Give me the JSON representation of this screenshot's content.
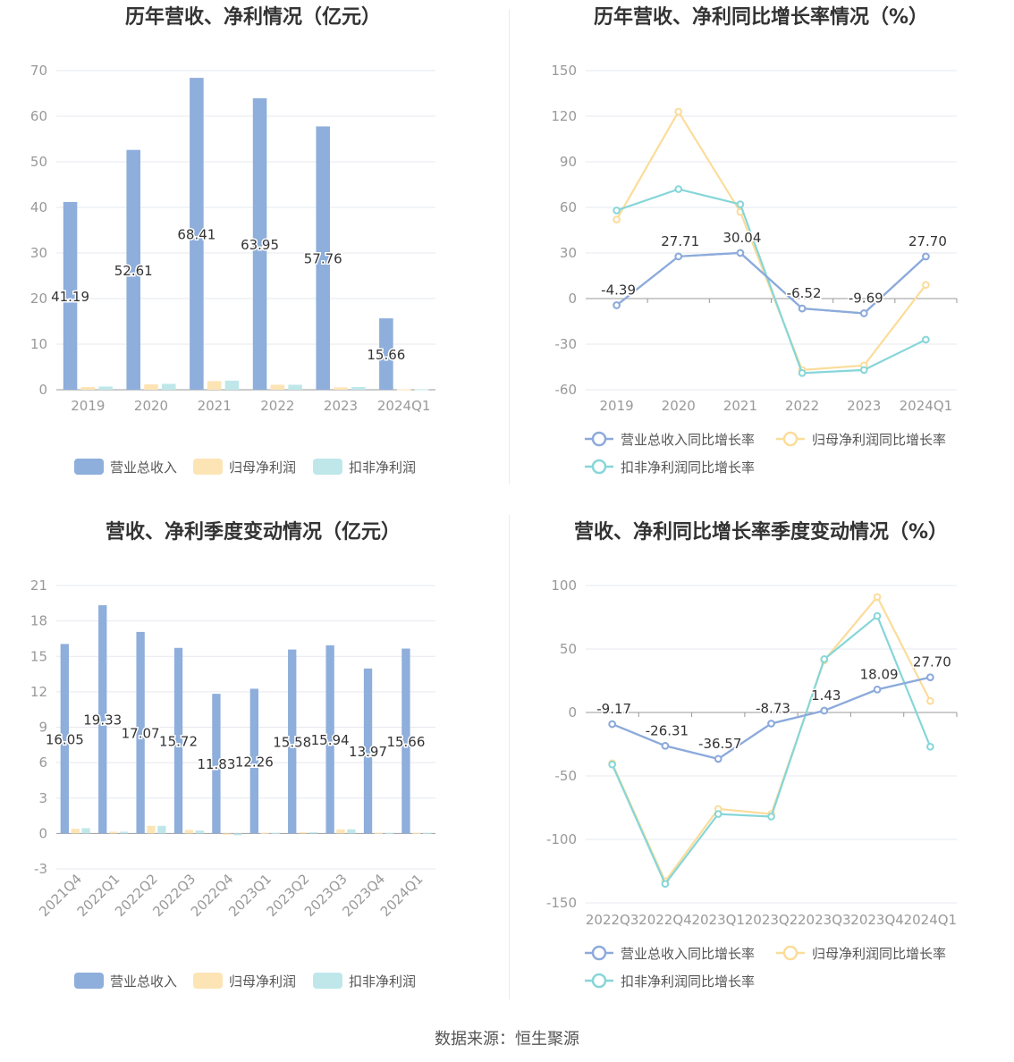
{
  "colors": {
    "revenue": "#8eaedb",
    "parent_profit": "#fde4b5",
    "deducted_profit": "#bfe7ea",
    "revenue_line": "#8caadb",
    "parent_line": "#fbdc9a",
    "deducted_line": "#86d6d8",
    "grid": "#e6e8ef",
    "axis": "#999999",
    "tick": "#999999",
    "title": "#333333",
    "label": "#333333"
  },
  "legend": {
    "bar": [
      "营业总收入",
      "归母净利润",
      "扣非净利润"
    ],
    "line": [
      "营业总收入同比增长率",
      "归母净利润同比增长率",
      "扣非净利润同比增长率"
    ]
  },
  "footer": "数据来源：恒生聚源",
  "chart_data": [
    {
      "type": "bar",
      "title": "历年营收、净利情况（亿元）",
      "categories": [
        "2019",
        "2020",
        "2021",
        "2022",
        "2023",
        "2024Q1"
      ],
      "ylim": [
        0,
        70
      ],
      "yticks": [
        0,
        10,
        20,
        30,
        40,
        50,
        60,
        70
      ],
      "series": [
        {
          "name": "营业总收入",
          "values": [
            41.19,
            52.61,
            68.41,
            63.95,
            57.76,
            15.66
          ],
          "labels": [
            "41.19",
            "52.61",
            "68.41",
            "63.95",
            "57.76",
            "15.66"
          ]
        },
        {
          "name": "归母净利润",
          "values": [
            0.6,
            1.2,
            1.9,
            1.1,
            0.5,
            0.1
          ]
        },
        {
          "name": "扣非净利润",
          "values": [
            0.7,
            1.3,
            2.0,
            1.1,
            0.6,
            0.1
          ]
        }
      ],
      "legend": "bottom",
      "grid": true
    },
    {
      "type": "line",
      "title": "历年营收、净利同比增长率情况（%）",
      "categories": [
        "2019",
        "2020",
        "2021",
        "2022",
        "2023",
        "2024Q1"
      ],
      "ylim": [
        -60,
        150
      ],
      "yticks": [
        -60,
        -30,
        0,
        30,
        60,
        90,
        120,
        150
      ],
      "series": [
        {
          "name": "营业总收入同比增长率",
          "values": [
            -4.39,
            27.71,
            30.04,
            -6.52,
            -9.69,
            27.7
          ],
          "labels": [
            "-4.39",
            "27.71",
            "30.04",
            "-6.52",
            "-9.69",
            "27.70"
          ]
        },
        {
          "name": "归母净利润同比增长率",
          "values": [
            52,
            123,
            57,
            -47,
            -44,
            9
          ]
        },
        {
          "name": "扣非净利润同比增长率",
          "values": [
            58,
            72,
            62,
            -49,
            -47,
            -27
          ]
        }
      ],
      "legend": "bottom",
      "grid": true
    },
    {
      "type": "bar",
      "title": "营收、净利季度变动情况（亿元）",
      "categories": [
        "2021Q4",
        "2022Q1",
        "2022Q2",
        "2022Q3",
        "2022Q4",
        "2023Q1",
        "2023Q2",
        "2023Q3",
        "2023Q4",
        "2024Q1"
      ],
      "ylim": [
        -3,
        21
      ],
      "yticks": [
        -3,
        0,
        3,
        6,
        9,
        12,
        15,
        18,
        21
      ],
      "series": [
        {
          "name": "营业总收入",
          "values": [
            16.05,
            19.33,
            17.07,
            15.72,
            11.83,
            12.26,
            15.58,
            15.94,
            13.97,
            15.66
          ],
          "labels": [
            "16.05",
            "19.33",
            "17.07",
            "15.72",
            "11.83",
            "12.26",
            "15.58",
            "15.94",
            "13.97",
            "15.66"
          ]
        },
        {
          "name": "归母净利润",
          "values": [
            0.4,
            0.15,
            0.65,
            0.3,
            -0.1,
            0.05,
            0.1,
            0.35,
            0.05,
            0.05
          ]
        },
        {
          "name": "扣非净利润",
          "values": [
            0.45,
            0.15,
            0.65,
            0.25,
            -0.15,
            0.05,
            0.1,
            0.35,
            0.05,
            0.05
          ]
        }
      ],
      "legend": "bottom",
      "grid": true
    },
    {
      "type": "line",
      "title": "营收、净利同比增长率季度变动情况（%）",
      "categories": [
        "2022Q3",
        "2022Q4",
        "2023Q1",
        "2023Q2",
        "2023Q3",
        "2023Q4",
        "2024Q1"
      ],
      "ylim": [
        -150,
        100
      ],
      "yticks": [
        -150,
        -100,
        -50,
        0,
        50,
        100
      ],
      "series": [
        {
          "name": "营业总收入同比增长率",
          "values": [
            -9.17,
            -26.31,
            -36.57,
            -8.73,
            1.43,
            18.09,
            27.7
          ],
          "labels": [
            "-9.17",
            "-26.31",
            "-36.57",
            "-8.73",
            "1.43",
            "18.09",
            "27.70"
          ]
        },
        {
          "name": "归母净利润同比增长率",
          "values": [
            -40,
            -133,
            -76,
            -80,
            41,
            91,
            9
          ]
        },
        {
          "name": "扣非净利润同比增长率",
          "values": [
            -41,
            -135,
            -80,
            -82,
            42,
            76,
            -27
          ]
        }
      ],
      "legend": "bottom",
      "grid": true
    }
  ]
}
